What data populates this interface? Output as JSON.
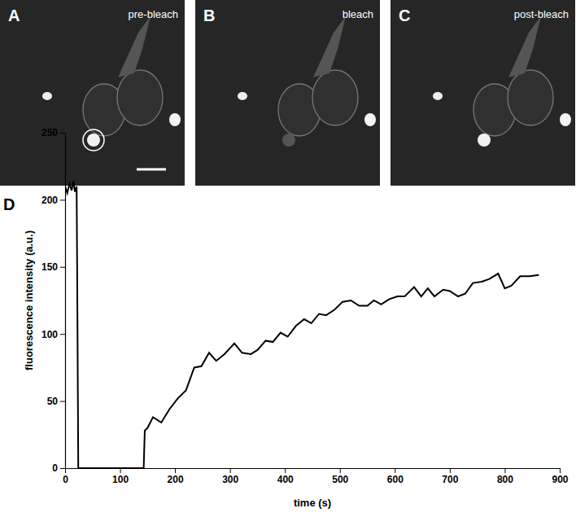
{
  "panels": [
    {
      "letter": "A",
      "caption": "pre-bleach"
    },
    {
      "letter": "B",
      "caption": "bleach"
    },
    {
      "letter": "C",
      "caption": "post-bleach"
    }
  ],
  "chart_data": {
    "type": "line",
    "title": "D",
    "x_label": "time (s)",
    "y_label": "fluorescence intensity (a.u.)",
    "x": [
      0,
      4,
      8,
      12,
      15,
      18,
      21,
      22,
      24,
      143,
      145,
      150,
      160,
      175,
      190,
      205,
      220,
      235,
      248,
      262,
      275,
      290,
      308,
      322,
      338,
      350,
      365,
      378,
      392,
      405,
      420,
      435,
      448,
      462,
      475,
      490,
      505,
      520,
      535,
      550,
      562,
      575,
      590,
      605,
      618,
      635,
      648,
      660,
      672,
      688,
      700,
      715,
      728,
      742,
      758,
      772,
      788,
      800,
      812,
      828,
      845,
      862
    ],
    "series": [
      {
        "color": "#000000",
        "values": [
          210,
          205,
          212,
          207,
          214,
          206,
          210,
          145,
          0,
          0,
          28,
          30,
          38,
          34,
          44,
          52,
          58,
          75,
          76,
          86,
          80,
          85,
          93,
          86,
          85,
          88,
          95,
          94,
          101,
          98,
          106,
          111,
          108,
          115,
          114,
          118,
          124,
          125,
          121,
          121,
          125,
          122,
          126,
          128,
          128,
          135,
          128,
          134,
          128,
          133,
          132,
          128,
          130,
          138,
          139,
          141,
          145,
          134,
          136,
          143,
          143,
          144
        ]
      }
    ],
    "xlim": [
      0,
      900
    ],
    "xticks": [
      0,
      100,
      200,
      300,
      400,
      500,
      600,
      700,
      800,
      900
    ],
    "ylim": [
      0,
      250
    ],
    "yticks": [
      0,
      50,
      100,
      150,
      200,
      250
    ],
    "grid": false
  }
}
